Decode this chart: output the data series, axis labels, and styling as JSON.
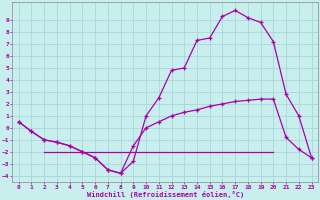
{
  "xlabel": "Windchill (Refroidissement éolien,°C)",
  "bg_color": "#c8eeee",
  "grid_color": "#a8d8d8",
  "line_color": "#aa00aa",
  "xlim": [
    -0.5,
    23.5
  ],
  "ylim": [
    -4.5,
    10.5
  ],
  "xticks": [
    0,
    1,
    2,
    3,
    4,
    5,
    6,
    7,
    8,
    9,
    10,
    11,
    12,
    13,
    14,
    15,
    16,
    17,
    18,
    19,
    20,
    21,
    22,
    23
  ],
  "yticks": [
    -4,
    -3,
    -2,
    -1,
    0,
    1,
    2,
    3,
    4,
    5,
    6,
    7,
    8,
    9
  ],
  "curve1_x": [
    0,
    1,
    2,
    3,
    4,
    5,
    6,
    7,
    8,
    9,
    10,
    11,
    12,
    13,
    14,
    15,
    16,
    17,
    18,
    19,
    20,
    21,
    22,
    23
  ],
  "curve1_y": [
    0.5,
    -0.3,
    -1.0,
    -1.2,
    -1.5,
    -2.0,
    -2.5,
    -3.5,
    -3.8,
    -2.8,
    1.0,
    2.5,
    4.8,
    5.0,
    7.3,
    7.5,
    9.3,
    9.8,
    9.2,
    8.8,
    7.2,
    2.8,
    1.0,
    -2.5
  ],
  "curve2_x": [
    0,
    1,
    2,
    3,
    4,
    5,
    6,
    7,
    8,
    9,
    10,
    11,
    12,
    13,
    14,
    15,
    16,
    17,
    18,
    19,
    20,
    21,
    22,
    23
  ],
  "curve2_y": [
    0.5,
    -0.3,
    -1.0,
    -1.2,
    -1.5,
    -2.0,
    -2.5,
    -3.5,
    -3.8,
    -1.5,
    0.0,
    0.5,
    1.0,
    1.3,
    1.5,
    1.8,
    2.0,
    2.2,
    2.3,
    2.4,
    2.4,
    -0.8,
    -1.8,
    -2.5
  ],
  "curve3_x": [
    2,
    20
  ],
  "curve3_y": [
    -2.0,
    -2.0
  ]
}
